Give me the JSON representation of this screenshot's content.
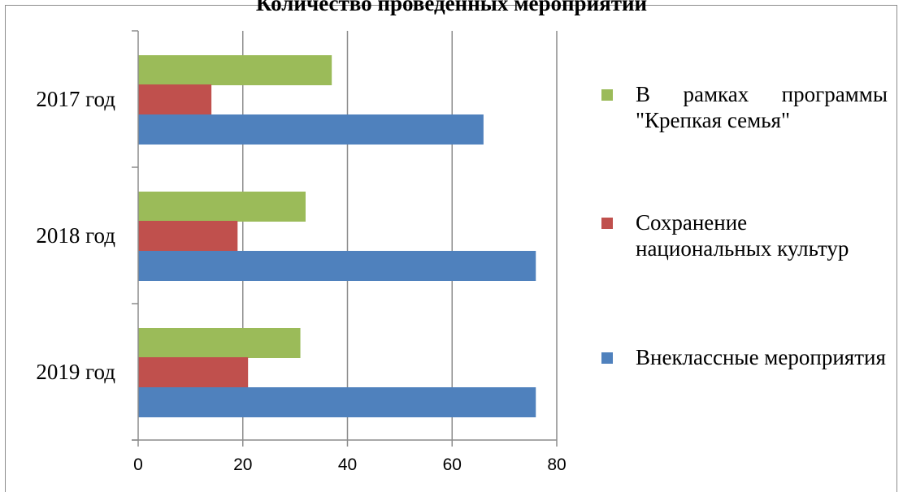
{
  "chart_data": {
    "type": "bar",
    "orientation": "horizontal",
    "title": "Количество проведенных мероприятий",
    "categories": [
      "2017 год",
      "2018 год",
      "2019 год"
    ],
    "series": [
      {
        "name": "В рамках программы \"Крепкая семья\"",
        "color": "#9bbb59",
        "values": [
          37,
          32,
          31
        ]
      },
      {
        "name": "Сохранение национальных культур",
        "color": "#c0504d",
        "values": [
          14,
          19,
          21
        ]
      },
      {
        "name": "Внеклассные мероприятия",
        "color": "#4f81bd",
        "values": [
          66,
          76,
          76
        ]
      }
    ],
    "xlim": [
      0,
      80
    ],
    "xticks": [
      "0",
      "20",
      "40",
      "60",
      "80"
    ],
    "grid": true,
    "legend_position": "right"
  }
}
